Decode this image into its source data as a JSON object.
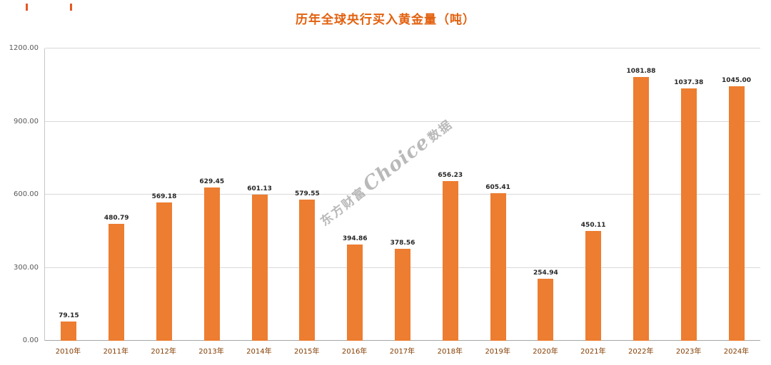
{
  "watermark": {
    "prefix": "东方财富",
    "brand": "Choice",
    "suffix": "数据"
  },
  "colors": {
    "bar": "#ED7D31",
    "title": "#E2600E",
    "x_label": "#833C00",
    "grid": "#D9D9D9",
    "watermark": "#8C8C8C",
    "mark": "#E03C00"
  },
  "chart_data": {
    "type": "bar",
    "title": "历年全球央行买入黄金量（吨）",
    "xlabel": "",
    "ylabel": "",
    "categories": [
      "2010年",
      "2011年",
      "2012年",
      "2013年",
      "2014年",
      "2015年",
      "2016年",
      "2017年",
      "2018年",
      "2019年",
      "2020年",
      "2021年",
      "2022年",
      "2023年",
      "2024年"
    ],
    "values": [
      79.15,
      480.79,
      569.18,
      629.45,
      601.13,
      579.55,
      394.86,
      378.56,
      656.23,
      605.41,
      254.94,
      450.11,
      1081.88,
      1037.38,
      1045.0
    ],
    "value_labels": [
      "79.15",
      "480.79",
      "569.18",
      "629.45",
      "601.13",
      "579.55",
      "394.86",
      "378.56",
      "656.23",
      "605.41",
      "254.94",
      "450.11",
      "1081.88",
      "1037.38",
      "1045.00"
    ],
    "ylim": [
      0,
      1200
    ],
    "y_ticks": [
      {
        "value": 0,
        "label": "0.00"
      },
      {
        "value": 300,
        "label": "300.00"
      },
      {
        "value": 600,
        "label": "600.00"
      },
      {
        "value": 900,
        "label": "900.00"
      },
      {
        "value": 1200,
        "label": "1200.00"
      }
    ],
    "grid": true,
    "legend": "none",
    "bar_color": "#ED7D31"
  }
}
